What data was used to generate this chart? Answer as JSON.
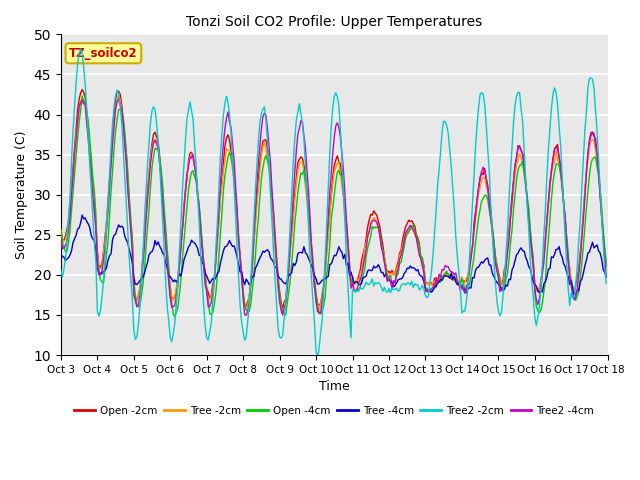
{
  "title": "Tonzi Soil CO2 Profile: Upper Temperatures",
  "xlabel": "Time",
  "ylabel": "Soil Temperature (C)",
  "ylim": [
    10,
    50
  ],
  "yticks": [
    10,
    15,
    20,
    25,
    30,
    35,
    40,
    45,
    50
  ],
  "xlim": [
    0,
    360
  ],
  "x_tick_labels": [
    "Oct 3",
    "Oct 4",
    "Oct 5",
    "Oct 6",
    "Oct 7",
    "Oct 8",
    "Oct 9",
    "Oct 10",
    "Oct 11",
    "Oct 12",
    "Oct 13",
    "Oct 14",
    "Oct 15",
    "Oct 16",
    "Oct 17",
    "Oct 18"
  ],
  "x_tick_positions": [
    0,
    24,
    48,
    72,
    96,
    120,
    144,
    168,
    192,
    216,
    240,
    264,
    288,
    312,
    336,
    360
  ],
  "annotation_text": "TZ_soilco2",
  "series": {
    "Open_2cm": {
      "color": "#dd0000",
      "label": "Open -2cm"
    },
    "Tree_2cm": {
      "color": "#ff9900",
      "label": "Tree -2cm"
    },
    "Open_4cm": {
      "color": "#00cc00",
      "label": "Open -4cm"
    },
    "Tree_4cm": {
      "color": "#0000cc",
      "label": "Tree -4cm"
    },
    "Tree2_2cm": {
      "color": "#00cccc",
      "label": "Tree2 -2cm"
    },
    "Tree2_4cm": {
      "color": "#cc00cc",
      "label": "Tree2 -4cm"
    }
  },
  "plot_bg_color": "#e8e8e8",
  "grid_color": "#ffffff",
  "annotation_bg": "#ffff99",
  "annotation_border": "#ccaa00",
  "figsize": [
    6.4,
    4.8
  ],
  "dpi": 100
}
